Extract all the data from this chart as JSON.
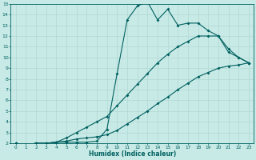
{
  "xlabel": "Humidex (Indice chaleur)",
  "xlim": [
    -0.5,
    23.5
  ],
  "ylim": [
    2,
    15
  ],
  "xticks": [
    0,
    1,
    2,
    3,
    4,
    5,
    6,
    7,
    8,
    9,
    10,
    11,
    12,
    13,
    14,
    15,
    16,
    17,
    18,
    19,
    20,
    21,
    22,
    23
  ],
  "yticks": [
    2,
    3,
    4,
    5,
    6,
    7,
    8,
    9,
    10,
    11,
    12,
    13,
    14,
    15
  ],
  "bg_color": "#c8eae6",
  "grid_color": "#b0d8d4",
  "line_color": "#006060",
  "line1_x": [
    0,
    1,
    2,
    3,
    4,
    5,
    6,
    7,
    8,
    9,
    10,
    11,
    12,
    13,
    14,
    15,
    16,
    17,
    18,
    19,
    20,
    21,
    22,
    23
  ],
  "line1_y": [
    2.0,
    1.85,
    2.0,
    2.0,
    2.1,
    2.1,
    2.1,
    2.1,
    2.2,
    3.3,
    8.5,
    13.5,
    14.8,
    15.2,
    13.5,
    14.5,
    13.0,
    13.2,
    13.2,
    12.5,
    12.0,
    10.5,
    10.0,
    9.5
  ],
  "line2_x": [
    0,
    1,
    2,
    3,
    4,
    5,
    6,
    7,
    8,
    9,
    10,
    11,
    12,
    13,
    14,
    15,
    16,
    17,
    18,
    19,
    20,
    21,
    22,
    23
  ],
  "line2_y": [
    2.0,
    1.85,
    2.0,
    2.0,
    2.1,
    2.5,
    3.0,
    3.5,
    4.0,
    4.5,
    5.5,
    6.5,
    7.5,
    8.5,
    9.5,
    10.3,
    11.0,
    11.5,
    12.0,
    12.0,
    12.0,
    10.8,
    10.0,
    9.5
  ],
  "line3_x": [
    0,
    1,
    2,
    3,
    4,
    5,
    6,
    7,
    8,
    9,
    10,
    11,
    12,
    13,
    14,
    15,
    16,
    17,
    18,
    19,
    20,
    21,
    22,
    23
  ],
  "line3_y": [
    2.0,
    1.85,
    2.0,
    2.0,
    2.1,
    2.2,
    2.4,
    2.5,
    2.6,
    2.8,
    3.2,
    3.8,
    4.4,
    5.0,
    5.7,
    6.3,
    7.0,
    7.6,
    8.2,
    8.6,
    9.0,
    9.2,
    9.3,
    9.5
  ],
  "markersize": 2.0,
  "linewidth": 0.8
}
